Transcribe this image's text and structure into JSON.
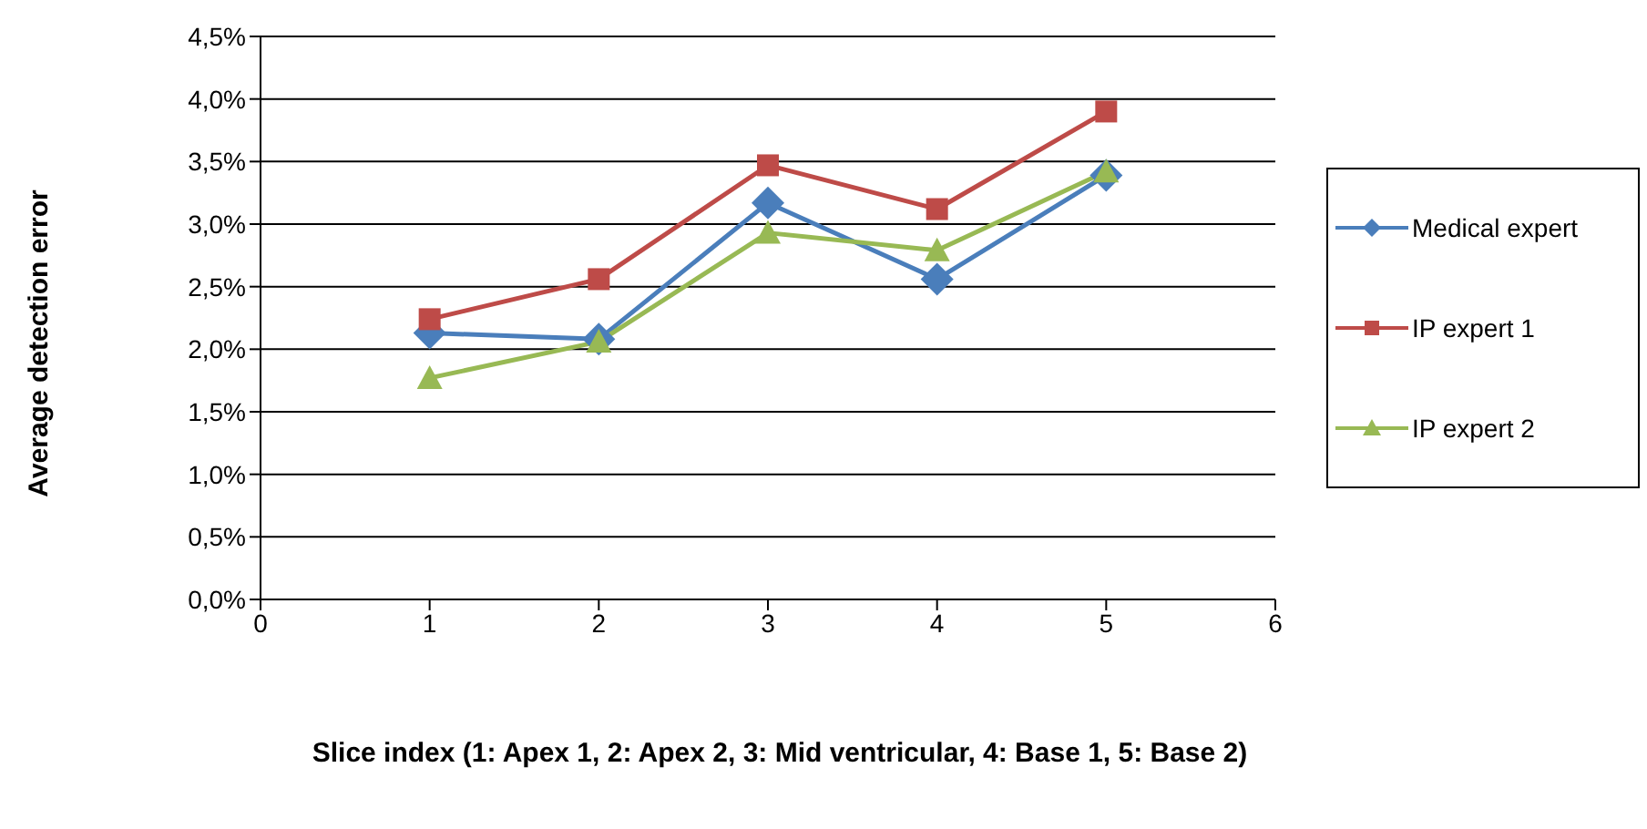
{
  "chart_data": {
    "type": "line",
    "xlabel": "Slice index (1: Apex 1, 2: Apex 2, 3: Mid ventricular, 4: Base 1, 5: Base 2)",
    "ylabel": "Average detection error",
    "x": [
      1,
      2,
      3,
      4,
      5
    ],
    "series": [
      {
        "name": "Medical expert",
        "color": "#4a7ebb",
        "marker": "diamond",
        "values": [
          2.13,
          2.08,
          3.17,
          2.56,
          3.39
        ]
      },
      {
        "name": "IP expert 1",
        "color": "#be4b48",
        "marker": "square",
        "values": [
          2.24,
          2.56,
          3.47,
          3.12,
          3.9
        ]
      },
      {
        "name": "IP expert 2",
        "color": "#98b954",
        "marker": "triangle",
        "values": [
          1.77,
          2.06,
          2.93,
          2.79,
          3.42
        ]
      }
    ],
    "xlim": [
      0,
      6
    ],
    "xticks": [
      0,
      1,
      2,
      3,
      4,
      5,
      6
    ],
    "ylim": [
      0,
      4.5
    ],
    "yticks": [
      {
        "value": 0,
        "label": "0,0%"
      },
      {
        "value": 0.5,
        "label": "0,5%"
      },
      {
        "value": 1,
        "label": "1,0%"
      },
      {
        "value": 1.5,
        "label": "1,5%"
      },
      {
        "value": 2,
        "label": "2,0%"
      },
      {
        "value": 2.5,
        "label": "2,5%"
      },
      {
        "value": 3,
        "label": "3,0%"
      },
      {
        "value": 3.5,
        "label": "3,5%"
      },
      {
        "value": 4,
        "label": "4,0%"
      },
      {
        "value": 4.5,
        "label": "4,5%"
      }
    ],
    "grid": "y",
    "legend": "right"
  }
}
